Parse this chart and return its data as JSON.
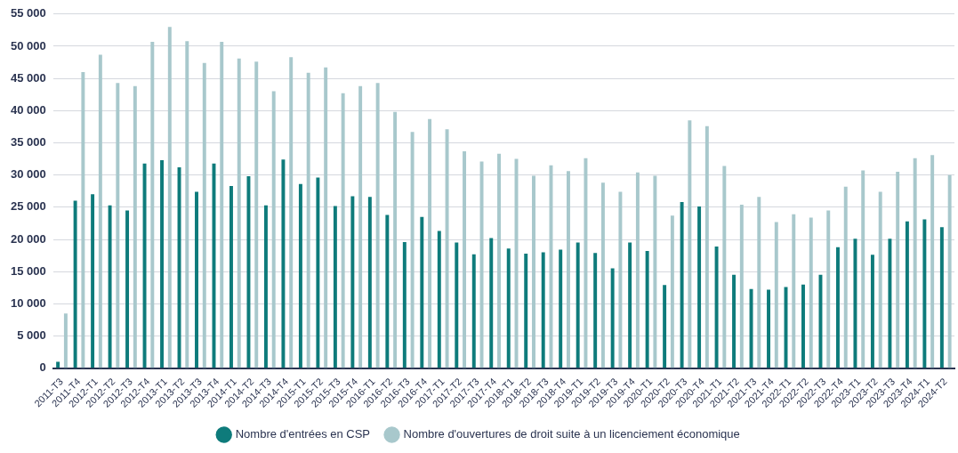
{
  "chart_data": {
    "type": "bar",
    "categories": [
      "2011-T3",
      "2011-T4",
      "2012-T1",
      "2012-T2",
      "2012-T3",
      "2012-T4",
      "2013-T1",
      "2013-T2",
      "2013-T3",
      "2013-T4",
      "2014-T1",
      "2014-T2",
      "2014-T3",
      "2014-T4",
      "2015-T1",
      "2015-T2",
      "2015-T3",
      "2015-T4",
      "2016-T1",
      "2016-T2",
      "2016-T3",
      "2016-T4",
      "2017-T1",
      "2017-T2",
      "2017-T3",
      "2017-T4",
      "2018-T1",
      "2018-T2",
      "2018-T3",
      "2018-T4",
      "2019-T1",
      "2019-T2",
      "2019-T3",
      "2019-T4",
      "2020-T1",
      "2020-T2",
      "2020-T3",
      "2020-T4",
      "2021-T1",
      "2021-T2",
      "2021-T3",
      "2021-T4",
      "2022-T1",
      "2022-T2",
      "2022-T3",
      "2022-T4",
      "2023-T1",
      "2023-T2",
      "2023-T3",
      "2023-T4",
      "2024-T1",
      "2024-T2"
    ],
    "series": [
      {
        "name": "Nombre d'entrées en CSP",
        "color": "#0e7b7b",
        "values": [
          1000,
          26000,
          27000,
          25300,
          24500,
          31800,
          32300,
          31200,
          27400,
          31800,
          28300,
          29800,
          25300,
          32400,
          28600,
          29600,
          25200,
          26700,
          26600,
          23800,
          19600,
          23500,
          21300,
          19500,
          17700,
          20200,
          18600,
          17800,
          18000,
          18400,
          19500,
          17900,
          15500,
          19500,
          18200,
          12900,
          25800,
          25100,
          18900,
          14500,
          12300,
          12200,
          12600,
          13000,
          14500,
          18800,
          20100,
          17600,
          20100,
          22800,
          23100,
          21900
        ]
      },
      {
        "name": "Nombre d'ouvertures de droit suite à un licenciement économique",
        "color": "#a8c8cc",
        "values": [
          8500,
          46000,
          48700,
          44300,
          43800,
          50700,
          53000,
          50800,
          47400,
          50700,
          48100,
          47600,
          43000,
          48300,
          45900,
          46700,
          42700,
          43800,
          44300,
          39800,
          36700,
          38700,
          37100,
          33700,
          32100,
          33300,
          32500,
          29900,
          31500,
          30600,
          32600,
          28800,
          27400,
          30400,
          29900,
          23700,
          38500,
          37600,
          31400,
          25400,
          26600,
          22700,
          23900,
          23400,
          24500,
          28200,
          30700,
          27400,
          30500,
          32600,
          33100,
          30000
        ]
      }
    ],
    "ylim": [
      0,
      55000
    ],
    "yticks": [
      {
        "value": 0,
        "label": "0"
      },
      {
        "value": 5000,
        "label": "5 000"
      },
      {
        "value": 10000,
        "label": "10 000"
      },
      {
        "value": 15000,
        "label": "15 000"
      },
      {
        "value": 20000,
        "label": "20 000"
      },
      {
        "value": 25000,
        "label": "25 000"
      },
      {
        "value": 30000,
        "label": "30 000"
      },
      {
        "value": 35000,
        "label": "35 000"
      },
      {
        "value": 40000,
        "label": "40 000"
      },
      {
        "value": 45000,
        "label": "45 000"
      },
      {
        "value": 50000,
        "label": "50 000"
      },
      {
        "value": 55000,
        "label": "55 000"
      }
    ],
    "grid": "y",
    "legend": "bottom"
  }
}
